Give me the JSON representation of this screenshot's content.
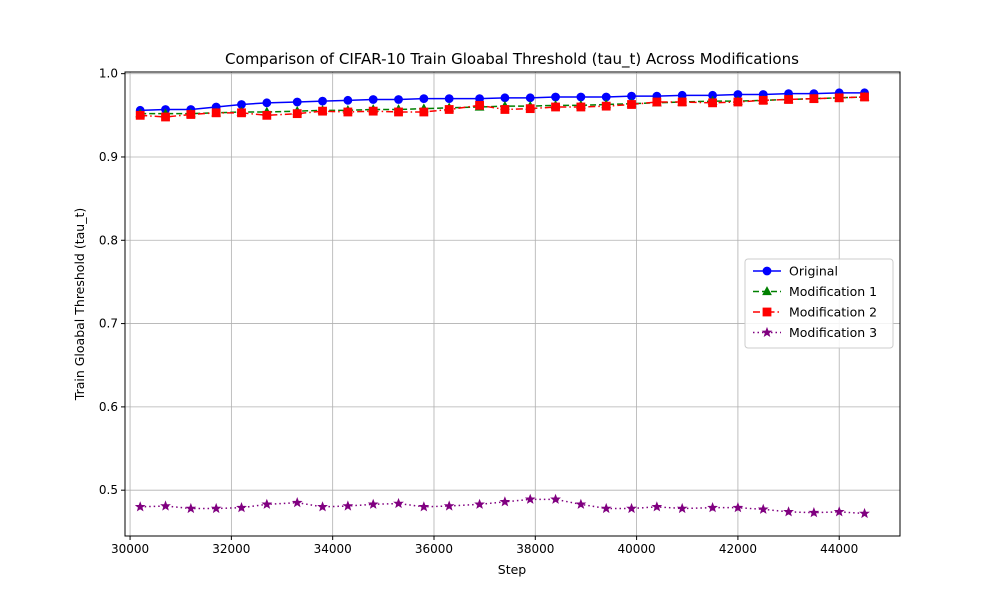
{
  "chart_data": {
    "type": "line",
    "title": "Comparison of CIFAR-10 Train Gloabal Threshold (tau_t) Across Modifications",
    "xlabel": "Step",
    "ylabel": "Train Gloabal Threshold (tau_t)",
    "xlim": [
      29900,
      45200
    ],
    "ylim": [
      0.445,
      1.002
    ],
    "xticks": [
      30000,
      32000,
      34000,
      36000,
      38000,
      40000,
      42000,
      44000
    ],
    "yticks": [
      0.5,
      0.6,
      0.7,
      0.8,
      0.9,
      1.0
    ],
    "ytick_labels": [
      "0.5",
      "0.6",
      "0.7",
      "0.8",
      "0.9",
      "1.0"
    ],
    "grid": true,
    "legend_position": "center-right",
    "x": [
      30200,
      30700,
      31200,
      31700,
      32200,
      32700,
      33300,
      33800,
      34300,
      34800,
      35300,
      35800,
      36300,
      36900,
      37400,
      37900,
      38400,
      38900,
      39400,
      39900,
      40400,
      40900,
      41500,
      42000,
      42500,
      43000,
      43500,
      44000,
      44500
    ],
    "series": [
      {
        "name": "Original",
        "color": "#0000ff",
        "linestyle": "solid",
        "marker": "circle",
        "values": [
          0.956,
          0.957,
          0.957,
          0.96,
          0.963,
          0.965,
          0.966,
          0.967,
          0.968,
          0.969,
          0.969,
          0.97,
          0.97,
          0.97,
          0.971,
          0.971,
          0.972,
          0.972,
          0.972,
          0.973,
          0.973,
          0.974,
          0.974,
          0.975,
          0.975,
          0.976,
          0.976,
          0.977,
          0.977
        ]
      },
      {
        "name": "Modification 1",
        "color": "#008000",
        "linestyle": "dashed",
        "marker": "triangle",
        "values": [
          0.952,
          0.952,
          0.952,
          0.953,
          0.954,
          0.954,
          0.955,
          0.956,
          0.956,
          0.957,
          0.957,
          0.958,
          0.959,
          0.96,
          0.961,
          0.961,
          0.962,
          0.962,
          0.963,
          0.964,
          0.965,
          0.966,
          0.967,
          0.967,
          0.968,
          0.969,
          0.97,
          0.971,
          0.972
        ]
      },
      {
        "name": "Modification 2",
        "color": "#ff0000",
        "linestyle": "dashdot",
        "marker": "square",
        "values": [
          0.95,
          0.948,
          0.951,
          0.953,
          0.953,
          0.95,
          0.952,
          0.955,
          0.954,
          0.955,
          0.954,
          0.954,
          0.957,
          0.962,
          0.957,
          0.958,
          0.96,
          0.96,
          0.961,
          0.963,
          0.966,
          0.966,
          0.965,
          0.966,
          0.968,
          0.969,
          0.97,
          0.971,
          0.972
        ]
      },
      {
        "name": "Modification 3",
        "color": "#800080",
        "linestyle": "dotted",
        "marker": "star",
        "values": [
          0.48,
          0.481,
          0.478,
          0.478,
          0.479,
          0.483,
          0.485,
          0.48,
          0.481,
          0.483,
          0.484,
          0.48,
          0.481,
          0.483,
          0.486,
          0.489,
          0.489,
          0.483,
          0.478,
          0.478,
          0.48,
          0.478,
          0.479,
          0.479,
          0.477,
          0.474,
          0.473,
          0.474,
          0.472
        ]
      }
    ]
  }
}
